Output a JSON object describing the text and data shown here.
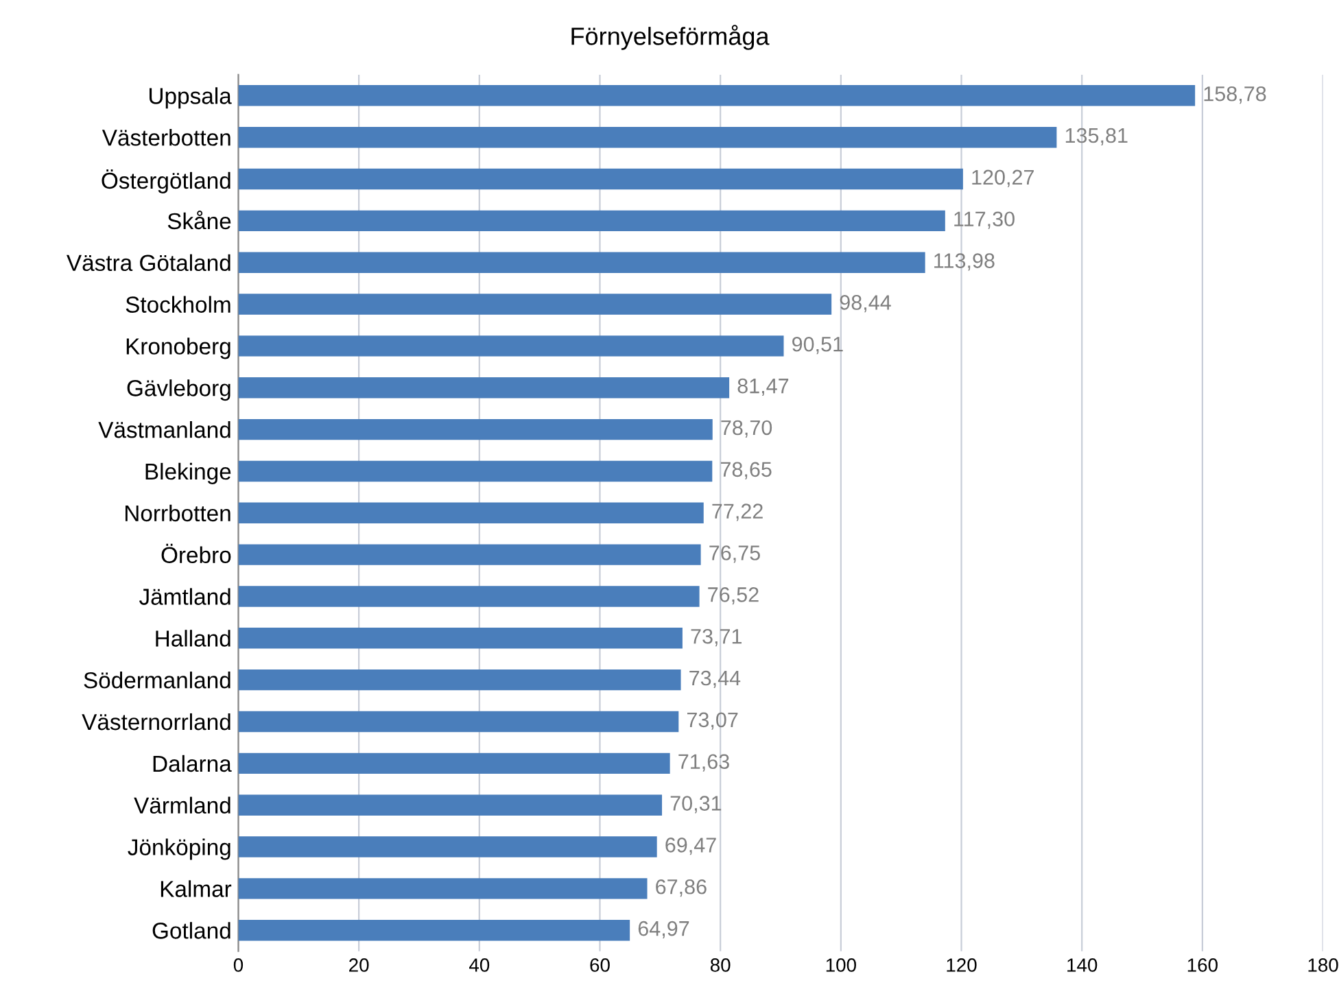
{
  "chart_data": {
    "type": "bar",
    "orientation": "horizontal",
    "title": "Förnyelseförmåga",
    "categories": [
      "Uppsala",
      "Västerbotten",
      "Östergötland",
      "Skåne",
      "Västra Götaland",
      "Stockholm",
      "Kronoberg",
      "Gävleborg",
      "Västmanland",
      "Blekinge",
      "Norrbotten",
      "Örebro",
      "Jämtland",
      "Halland",
      "Södermanland",
      "Västernorrland",
      "Dalarna",
      "Värmland",
      "Jönköping",
      "Kalmar",
      "Gotland"
    ],
    "values": [
      158.78,
      135.81,
      120.27,
      117.3,
      113.98,
      98.44,
      90.51,
      81.47,
      78.7,
      78.65,
      77.22,
      76.75,
      76.52,
      73.71,
      73.44,
      73.07,
      71.63,
      70.31,
      69.47,
      67.86,
      64.97
    ],
    "value_labels": [
      "158,78",
      "135,81",
      "120,27",
      "117,30",
      "113,98",
      "98,44",
      "90,51",
      "81,47",
      "78,70",
      "78,65",
      "77,22",
      "76,75",
      "76,52",
      "73,71",
      "73,44",
      "73,07",
      "71,63",
      "70,31",
      "69,47",
      "67,86",
      "64,97"
    ],
    "color": "#4a7ebb",
    "xlim": [
      0,
      180
    ],
    "xticks": [
      0,
      20,
      40,
      60,
      80,
      100,
      120,
      140,
      160,
      180
    ],
    "grid": "x",
    "legend": false
  }
}
